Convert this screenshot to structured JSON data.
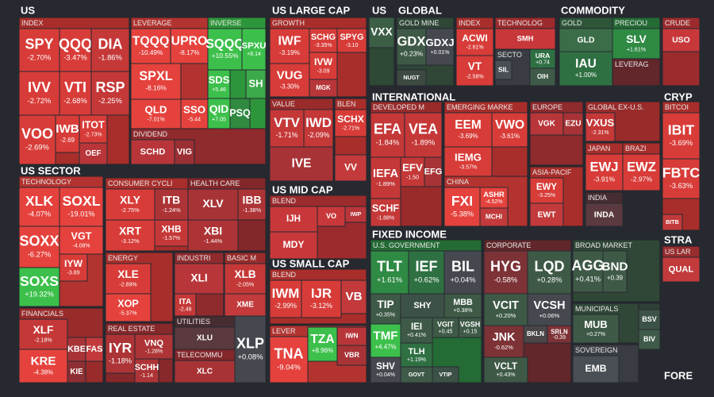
{
  "sections": [
    {
      "title": "US",
      "groups": [
        {
          "label": "INDEX",
          "tiles": [
            {
              "ticker": "SPY",
              "change": "-2.70%"
            },
            {
              "ticker": "QQQ",
              "change": "-3.47%"
            },
            {
              "ticker": "DIA",
              "change": "-1.86%"
            },
            {
              "ticker": "IVV",
              "change": "-2.72%"
            },
            {
              "ticker": "VTI",
              "change": "-2.68%"
            },
            {
              "ticker": "RSP",
              "change": "-2.25%"
            },
            {
              "ticker": "VOO",
              "change": "-2.69%"
            },
            {
              "ticker": "IWB",
              "change": "-2.69"
            },
            {
              "ticker": "ITOT",
              "change": "-2.73%"
            },
            {
              "ticker": "OEF",
              "color": "#b8363a"
            }
          ]
        },
        {
          "label": "LEVERAGE",
          "tiles": [
            {
              "ticker": "TQQQ",
              "change": "-10.49%"
            },
            {
              "ticker": "UPRO",
              "change": "-8.17%"
            },
            {
              "ticker": "SPXL",
              "change": "-8.16%"
            },
            {
              "ticker": "QLD",
              "change": "-7.01%"
            },
            {
              "ticker": "SSO",
              "change": "-5.44"
            }
          ]
        },
        {
          "label": "INVERSE",
          "tiles": [
            {
              "ticker": "SQQQ",
              "change": "+10.55%"
            },
            {
              "ticker": "SPXU",
              "change": "+8.14"
            },
            {
              "ticker": "SDS",
              "change": "+5.46"
            },
            {
              "ticker": "SH",
              "color": "#3ca94a"
            },
            {
              "ticker": "QID",
              "change": "+7.05"
            },
            {
              "ticker": "PSQ",
              "color": "#2f8a40"
            }
          ]
        },
        {
          "label": "DIVIDEND",
          "tiles": [
            {
              "ticker": "SCHD",
              "color": "#b8363a"
            },
            {
              "ticker": "VIG",
              "color": "#9a3034"
            }
          ]
        }
      ]
    },
    {
      "title": "US SECTOR",
      "groups": [
        {
          "label": "TECHNOLOGY",
          "tiles": [
            {
              "ticker": "XLK",
              "change": "-4.07%"
            },
            {
              "ticker": "SOXL",
              "change": "-19.01%"
            },
            {
              "ticker": "SOXX",
              "change": "-6.27%"
            },
            {
              "ticker": "VGT",
              "change": "-4.08%"
            },
            {
              "ticker": "IYW",
              "change": "-3.89"
            },
            {
              "ticker": "SOXS",
              "change": "+19.32%"
            }
          ]
        },
        {
          "label": "FINANCIALS",
          "tiles": [
            {
              "ticker": "XLF",
              "change": "-2.18%"
            },
            {
              "ticker": "KRE",
              "change": "-4.38%"
            },
            {
              "ticker": "KBE",
              "color": "#a83336"
            },
            {
              "ticker": "FAS",
              "color": "#c23a3b"
            },
            {
              "ticker": "KIE",
              "color": "#8e2f33"
            }
          ]
        },
        {
          "label": "CONSUMER CYCLI",
          "tiles": [
            {
              "ticker": "XLY",
              "change": "-2.75%"
            },
            {
              "ticker": "ITB",
              "change": "-1.24%"
            },
            {
              "ticker": "XRT",
              "change": "-3.12%"
            },
            {
              "ticker": "XHB",
              "change": "-1.57%"
            }
          ]
        },
        {
          "label": "HEALTH CARE",
          "tiles": [
            {
              "ticker": "XLV",
              "color": "#a83336"
            },
            {
              "ticker": "IBB",
              "change": "-1.38%"
            },
            {
              "ticker": "XBI",
              "change": "-1.44%"
            }
          ]
        },
        {
          "label": "ENERGY",
          "tiles": [
            {
              "ticker": "XLE",
              "change": "-2.89%"
            },
            {
              "ticker": "XOP",
              "change": "-5.37%"
            }
          ]
        },
        {
          "label": "INDUSTRI",
          "tiles": [
            {
              "ticker": "XLI",
              "color": "#b8363a"
            },
            {
              "ticker": "ITA",
              "change": "-2.46"
            }
          ]
        },
        {
          "label": "BASIC M",
          "tiles": [
            {
              "ticker": "XLB",
              "change": "-2.05%"
            },
            {
              "ticker": "XME",
              "color": "#c23a3b"
            }
          ]
        },
        {
          "label": "REAL ESTATE",
          "tiles": [
            {
              "ticker": "IYR",
              "change": "-1.18%"
            },
            {
              "ticker": "VNQ",
              "change": "-1.28%"
            },
            {
              "ticker": "SCHH",
              "change": "-1.14"
            }
          ]
        },
        {
          "label": "UTILITIES",
          "tiles": [
            {
              "ticker": "XLU",
              "color": "#5a3a3f"
            }
          ]
        },
        {
          "label": "TELECOMMU",
          "tiles": [
            {
              "ticker": "XLC",
              "color": "#a83336"
            }
          ]
        },
        {
          "tiles": [
            {
              "ticker": "XLP",
              "change": "+0.08%"
            }
          ]
        }
      ]
    },
    {
      "title": "US LARGE CAP",
      "groups": [
        {
          "label": "GROWTH",
          "tiles": [
            {
              "ticker": "IWF",
              "change": "-3.19%"
            },
            {
              "ticker": "SCHG",
              "change": "-3.35%"
            },
            {
              "ticker": "SPYG",
              "change": "-3.10"
            },
            {
              "ticker": "VUG",
              "change": "-3.30%"
            },
            {
              "ticker": "IVW",
              "change": "-3.09"
            },
            {
              "ticker": "MGK",
              "color": "#b8363a"
            }
          ]
        },
        {
          "label": "VALUE",
          "tiles": [
            {
              "ticker": "VTV",
              "change": "-1.71%"
            },
            {
              "ticker": "IWD",
              "change": "-2.09%"
            },
            {
              "ticker": "IVE",
              "color": "#a83336"
            }
          ]
        },
        {
          "label": "BLEN",
          "tiles": [
            {
              "ticker": "SCHX",
              "change": "-2.71%"
            },
            {
              "ticker": "VV",
              "color": "#c23a3b"
            }
          ]
        }
      ]
    },
    {
      "title": "US MID CAP",
      "groups": [
        {
          "label": "BLEND",
          "tiles": [
            {
              "ticker": "IJH",
              "color": "#c8383a"
            },
            {
              "ticker": "VO",
              "color": "#c8383a"
            },
            {
              "ticker": "IWP",
              "color": "#b8363a"
            },
            {
              "ticker": "MDY",
              "color": "#c8383a"
            }
          ]
        }
      ]
    },
    {
      "title": "US SMALL CAP",
      "groups": [
        {
          "label": "BLEND",
          "tiles": [
            {
              "ticker": "IWM",
              "change": "-2.99%"
            },
            {
              "ticker": "IJR",
              "change": "-3.12%"
            },
            {
              "ticker": "VB",
              "color": "#c23a3b"
            }
          ]
        },
        {
          "label": "LEVER",
          "tiles": [
            {
              "ticker": "TNA",
              "change": "-9.04%"
            },
            {
              "ticker": "TZA",
              "change": "+8.96%"
            },
            {
              "ticker": "IWN",
              "color": "#b8363a"
            },
            {
              "ticker": "VBR",
              "color": "#a83336"
            }
          ]
        }
      ]
    },
    {
      "title": "US",
      "groups": [
        {
          "tiles": [
            {
              "ticker": "VXX",
              "color": "#3b5e45"
            }
          ]
        }
      ]
    },
    {
      "title": "GLOBAL",
      "groups": [
        {
          "label": "GOLD MINE",
          "tiles": [
            {
              "ticker": "GDX",
              "change": "+0.23%"
            },
            {
              "ticker": "GDXJ",
              "change": "+0.01%"
            },
            {
              "ticker": "NUGT",
              "color": "#3c4a42"
            }
          ]
        },
        {
          "label": "INDEX",
          "tiles": [
            {
              "ticker": "ACWI",
              "change": "-2.61%"
            },
            {
              "ticker": "VT",
              "change": "-2.58%"
            }
          ]
        },
        {
          "label": "TECHNOLOG",
          "tiles": [
            {
              "ticker": "SMH",
              "color": "#c8383a"
            }
          ]
        },
        {
          "label": "SECTO",
          "tiles": [
            {
              "ticker": "SIL",
              "color": "#4a4e55"
            }
          ]
        },
        {
          "tiles": [
            {
              "ticker": "URA",
              "change": "+0.74"
            },
            {
              "ticker": "OIH",
              "color": "#3f5a48"
            }
          ]
        }
      ]
    },
    {
      "title": "COMMODITY",
      "groups": [
        {
          "label": "GOLD",
          "tiles": [
            {
              "ticker": "GLD",
              "color": "#3b6e48"
            },
            {
              "ticker": "IAU",
              "change": "+1.00%"
            }
          ]
        },
        {
          "label": "PRECIOU",
          "tiles": [
            {
              "ticker": "SLV",
              "change": "+1.61%"
            }
          ]
        },
        {
          "label": "LEVERAG",
          "tiles": []
        },
        {
          "label": "CRUDE",
          "tiles": [
            {
              "ticker": "USO",
              "color": "#c8383a"
            }
          ]
        }
      ]
    },
    {
      "title": "INTERNATIONAL",
      "groups": [
        {
          "label": "DEVELOPED M",
          "tiles": [
            {
              "ticker": "EFA",
              "change": "-1.84%"
            },
            {
              "ticker": "VEA",
              "change": "-1.89%"
            },
            {
              "ticker": "IEFA",
              "change": "-1.89%"
            },
            {
              "ticker": "EFV",
              "change": "-1.50"
            },
            {
              "ticker": "EFG",
              "color": "#a83336"
            },
            {
              "ticker": "SCHF",
              "change": "-1.88%"
            }
          ]
        },
        {
          "label": "EMERGING MARKE",
          "tiles": [
            {
              "ticker": "EEM",
              "change": "-3.69%"
            },
            {
              "ticker": "VWO",
              "change": "-3.61%"
            },
            {
              "ticker": "IEMG",
              "change": "-3.57%"
            }
          ]
        },
        {
          "label": "CHINA",
          "tiles": [
            {
              "ticker": "FXI",
              "change": "-5.38%"
            },
            {
              "ticker": "ASHR",
              "change": "-4.52%"
            },
            {
              "ticker": "MCHI",
              "color": "#c23a3b"
            }
          ]
        },
        {
          "label": "EUROPE",
          "tiles": [
            {
              "ticker": "VGK",
              "color": "#b8363a"
            },
            {
              "ticker": "EZU",
              "color": "#a83336"
            }
          ]
        },
        {
          "label": "ASIA-PACIF",
          "tiles": [
            {
              "ticker": "EWY",
              "change": "-3.25%"
            },
            {
              "ticker": "EWT",
              "color": "#c23a3b"
            }
          ]
        },
        {
          "label": "GLOBAL EX-U.S.",
          "tiles": [
            {
              "ticker": "VXUS",
              "change": "-2.31%"
            }
          ]
        },
        {
          "label": "JAPAN",
          "tiles": [
            {
              "ticker": "EWJ",
              "change": "-3.91%"
            }
          ]
        },
        {
          "label": "BRAZI",
          "tiles": [
            {
              "ticker": "EWZ",
              "change": "-2.97%"
            }
          ]
        },
        {
          "label": "INDIA",
          "tiles": [
            {
              "ticker": "INDA",
              "color": "#5a3a3f"
            }
          ]
        }
      ]
    },
    {
      "title": "CRYP",
      "groups": [
        {
          "label": "BITCOI",
          "tiles": [
            {
              "ticker": "IBIT",
              "change": "-3.69%"
            },
            {
              "ticker": "FBTC",
              "change": "-3.63%"
            },
            {
              "ticker": "BITB",
              "color": "#c23a3b"
            }
          ]
        }
      ]
    },
    {
      "title": "STRA",
      "groups": [
        {
          "label": "US LAR",
          "tiles": [
            {
              "ticker": "QUAL",
              "color": "#c23a3b"
            }
          ]
        }
      ]
    },
    {
      "title": "FIXED INCOME",
      "groups": [
        {
          "label": "U.S. GOVERNMENT",
          "tiles": [
            {
              "ticker": "TLT",
              "change": "+1.61%"
            },
            {
              "ticker": "IEF",
              "change": "+0.62%"
            },
            {
              "ticker": "BIL",
              "change": "+0.04%"
            },
            {
              "ticker": "TIP",
              "change": "+0.35%"
            },
            {
              "ticker": "SHY",
              "color": "#3d5247"
            },
            {
              "ticker": "MBB",
              "change": "+0.38%"
            },
            {
              "ticker": "IEI",
              "change": "+0.41%"
            },
            {
              "ticker": "VGIT",
              "change": "+0.45"
            },
            {
              "ticker": "VGSH",
              "change": "+0.15"
            },
            {
              "ticker": "TMF",
              "change": "+4.47%"
            },
            {
              "ticker": "TLH",
              "change": "+1.19%"
            },
            {
              "ticker": "SHV",
              "change": "+0.04%"
            },
            {
              "ticker": "GOVT",
              "color": "#3f5a48"
            },
            {
              "ticker": "VTIP",
              "color": "#3d5247"
            }
          ]
        },
        {
          "label": "CORPORATE",
          "tiles": [
            {
              "ticker": "HYG",
              "change": "-0.58%"
            },
            {
              "ticker": "LQD",
              "change": "+0.28%"
            },
            {
              "ticker": "VCIT",
              "change": "+0.20%"
            },
            {
              "ticker": "VCSH",
              "change": "+0.06%"
            },
            {
              "ticker": "JNK",
              "change": "-0.62%"
            },
            {
              "ticker": "BKLN",
              "color": "#4a4548"
            },
            {
              "ticker": "SRLN",
              "change": "-0.39"
            },
            {
              "ticker": "VCLT",
              "change": "+0.43%"
            }
          ]
        },
        {
          "label": "BROAD MARKET",
          "tiles": [
            {
              "ticker": "AGG",
              "change": "+0.41%"
            },
            {
              "ticker": "BND",
              "change": "+0.39"
            }
          ]
        },
        {
          "label": "MUNICIPALS",
          "tiles": [
            {
              "ticker": "MUB",
              "change": "+0.27%"
            }
          ]
        },
        {
          "label": "SOVEREIGN",
          "tiles": [
            {
              "ticker": "EMB",
              "color": "#4a4e55"
            }
          ]
        },
        {
          "tiles": [
            {
              "ticker": "BSV",
              "color": "#3d5247"
            },
            {
              "ticker": "BIV",
              "color": "#3f5a48"
            }
          ]
        }
      ]
    },
    {
      "title": "FORE",
      "groups": []
    }
  ]
}
